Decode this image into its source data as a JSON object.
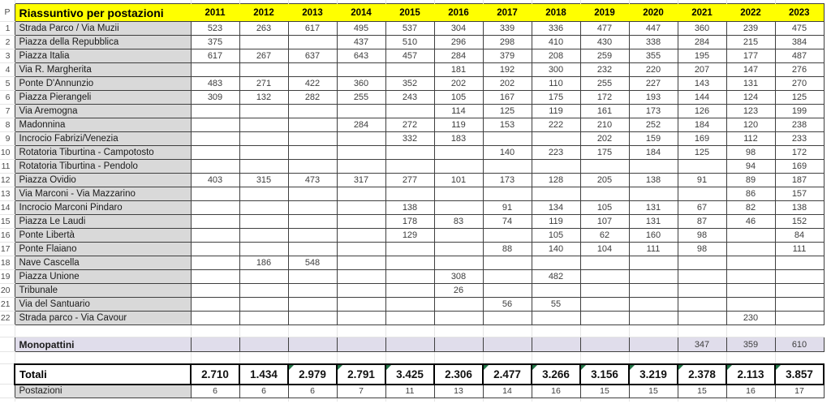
{
  "colors": {
    "header_bg": "#FFFF00",
    "name_bg": "#D9D9D9",
    "mono_bg": "#E0DDEB",
    "flag_green": "#217346",
    "grid_border": "#3F3F3F"
  },
  "table": {
    "corner_label": "P",
    "title": "Riassuntivo per postazioni",
    "years": [
      "2011",
      "2012",
      "2013",
      "2014",
      "2015",
      "2016",
      "2017",
      "2018",
      "2019",
      "2020",
      "2021",
      "2022",
      "2023"
    ],
    "stations": [
      {
        "num": "1",
        "label": "Strada Parco / Via Muzii",
        "values": [
          "523",
          "263",
          "617",
          "495",
          "537",
          "304",
          "339",
          "336",
          "477",
          "447",
          "360",
          "239",
          "475"
        ]
      },
      {
        "num": "2",
        "label": "Piazza della Repubblica",
        "values": [
          "375",
          "",
          "",
          "437",
          "510",
          "296",
          "298",
          "410",
          "430",
          "338",
          "284",
          "215",
          "384"
        ]
      },
      {
        "num": "3",
        "label": "Piazza Italia",
        "values": [
          "617",
          "267",
          "637",
          "643",
          "457",
          "284",
          "379",
          "208",
          "259",
          "355",
          "195",
          "177",
          "487"
        ]
      },
      {
        "num": "4",
        "label": "Via R. Margherita",
        "values": [
          "",
          "",
          "",
          "",
          "",
          "181",
          "192",
          "300",
          "232",
          "220",
          "207",
          "147",
          "276"
        ]
      },
      {
        "num": "5",
        "label": "Ponte D'Annunzio",
        "values": [
          "483",
          "271",
          "422",
          "360",
          "352",
          "202",
          "202",
          "110",
          "255",
          "227",
          "143",
          "131",
          "270"
        ]
      },
      {
        "num": "6",
        "label": "Piazza Pierangeli",
        "values": [
          "309",
          "132",
          "282",
          "255",
          "243",
          "105",
          "167",
          "175",
          "172",
          "193",
          "144",
          "124",
          "125"
        ]
      },
      {
        "num": "7",
        "label": "Via Aremogna",
        "values": [
          "",
          "",
          "",
          "",
          "",
          "114",
          "125",
          "119",
          "161",
          "173",
          "126",
          "123",
          "199"
        ]
      },
      {
        "num": "8",
        "label": "Madonnina",
        "values": [
          "",
          "",
          "",
          "284",
          "272",
          "119",
          "153",
          "222",
          "210",
          "252",
          "184",
          "120",
          "238"
        ]
      },
      {
        "num": "9",
        "label": "Incrocio Fabrizi/Venezia",
        "values": [
          "",
          "",
          "",
          "",
          "332",
          "183",
          "",
          "",
          "202",
          "159",
          "169",
          "112",
          "233"
        ]
      },
      {
        "num": "10",
        "label": "Rotatoria Tiburtina - Campotosto",
        "values": [
          "",
          "",
          "",
          "",
          "",
          "",
          "140",
          "223",
          "175",
          "184",
          "125",
          "98",
          "172"
        ]
      },
      {
        "num": "11",
        "label": "Rotatoria Tiburtina - Pendolo",
        "values": [
          "",
          "",
          "",
          "",
          "",
          "",
          "",
          "",
          "",
          "",
          "",
          "94",
          "169"
        ]
      },
      {
        "num": "12",
        "label": "Piazza Ovidio",
        "values": [
          "403",
          "315",
          "473",
          "317",
          "277",
          "101",
          "173",
          "128",
          "205",
          "138",
          "91",
          "89",
          "187"
        ]
      },
      {
        "num": "13",
        "label": "Via Marconi - Via Mazzarino",
        "values": [
          "",
          "",
          "",
          "",
          "",
          "",
          "",
          "",
          "",
          "",
          "",
          "86",
          "157"
        ]
      },
      {
        "num": "14",
        "label": "Incrocio Marconi Pindaro",
        "values": [
          "",
          "",
          "",
          "",
          "138",
          "",
          "91",
          "134",
          "105",
          "131",
          "67",
          "82",
          "138"
        ]
      },
      {
        "num": "15",
        "label": "Piazza Le Laudi",
        "values": [
          "",
          "",
          "",
          "",
          "178",
          "83",
          "74",
          "119",
          "107",
          "131",
          "87",
          "46",
          "152"
        ]
      },
      {
        "num": "16",
        "label": "Ponte Libertà",
        "values": [
          "",
          "",
          "",
          "",
          "129",
          "",
          "",
          "105",
          "62",
          "160",
          "98",
          "",
          "84"
        ]
      },
      {
        "num": "17",
        "label": "Ponte Flaiano",
        "values": [
          "",
          "",
          "",
          "",
          "",
          "",
          "88",
          "140",
          "104",
          "111",
          "98",
          "",
          "111"
        ]
      },
      {
        "num": "18",
        "label": "Nave Cascella",
        "values": [
          "",
          "186",
          "548",
          "",
          "",
          "",
          "",
          "",
          "",
          "",
          "",
          "",
          ""
        ]
      },
      {
        "num": "19",
        "label": "Piazza Unione",
        "values": [
          "",
          "",
          "",
          "",
          "",
          "308",
          "",
          "482",
          "",
          "",
          "",
          "",
          ""
        ]
      },
      {
        "num": "20",
        "label": "Tribunale",
        "values": [
          "",
          "",
          "",
          "",
          "",
          "26",
          "",
          "",
          "",
          "",
          "",
          "",
          ""
        ]
      },
      {
        "num": "21",
        "label": "Via del Santuario",
        "values": [
          "",
          "",
          "",
          "",
          "",
          "",
          "56",
          "55",
          "",
          "",
          "",
          "",
          ""
        ]
      },
      {
        "num": "22",
        "label": "Strada parco - Via Cavour",
        "values": [
          "",
          "",
          "",
          "",
          "",
          "",
          "",
          "",
          "",
          "",
          "",
          "230",
          ""
        ]
      }
    ],
    "monopattini": {
      "label": "Monopattini",
      "values": [
        "",
        "",
        "",
        "",
        "",
        "",
        "",
        "",
        "",
        "",
        "347",
        "359",
        "610"
      ]
    },
    "totals": {
      "label": "Totali",
      "values": [
        "2.710",
        "1.434",
        "2.979",
        "2.791",
        "3.425",
        "2.306",
        "2.477",
        "3.266",
        "3.156",
        "3.219",
        "2.378",
        "2.113",
        "3.857"
      ],
      "error_flags": [
        false,
        false,
        true,
        true,
        true,
        false,
        true,
        true,
        true,
        true,
        true,
        true,
        true
      ]
    },
    "postazioni": {
      "label": "Postazioni",
      "values": [
        "6",
        "6",
        "6",
        "7",
        "11",
        "13",
        "14",
        "16",
        "15",
        "15",
        "15",
        "16",
        "17"
      ]
    }
  }
}
